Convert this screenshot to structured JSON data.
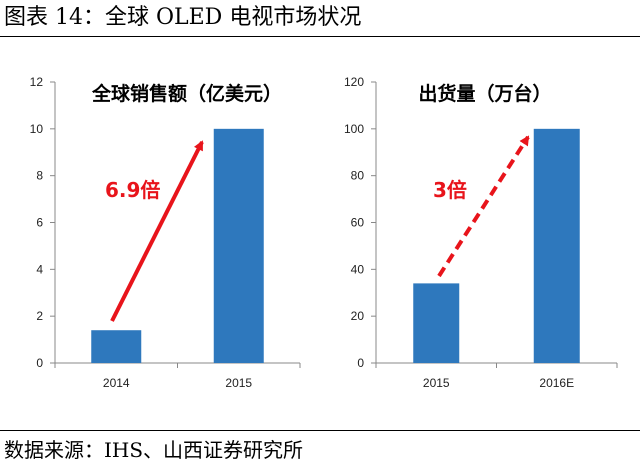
{
  "figure": {
    "title": "图表 14：全球 OLED 电视市场状况",
    "source": "数据来源：IHS、山西证券研究所"
  },
  "colors": {
    "bar": "#2e78bd",
    "arrow": "#e8141b",
    "axis": "#888888"
  },
  "chart_data": [
    {
      "type": "bar",
      "title": "全球销售额（亿美元）",
      "categories": [
        "2014",
        "2015"
      ],
      "values": [
        1.4,
        10
      ],
      "ylim": [
        0,
        12
      ],
      "yticks": [
        0,
        2,
        4,
        6,
        8,
        10,
        12
      ],
      "grid": false,
      "annotation": {
        "text": "6.9倍",
        "style": "solid-arrow"
      }
    },
    {
      "type": "bar",
      "title": "出货量（万台）",
      "categories": [
        "2015",
        "2016E"
      ],
      "values": [
        34,
        100
      ],
      "ylim": [
        0,
        120
      ],
      "yticks": [
        0,
        20,
        40,
        60,
        80,
        100,
        120
      ],
      "grid": false,
      "annotation": {
        "text": "3倍",
        "style": "dashed-arrow"
      }
    }
  ]
}
